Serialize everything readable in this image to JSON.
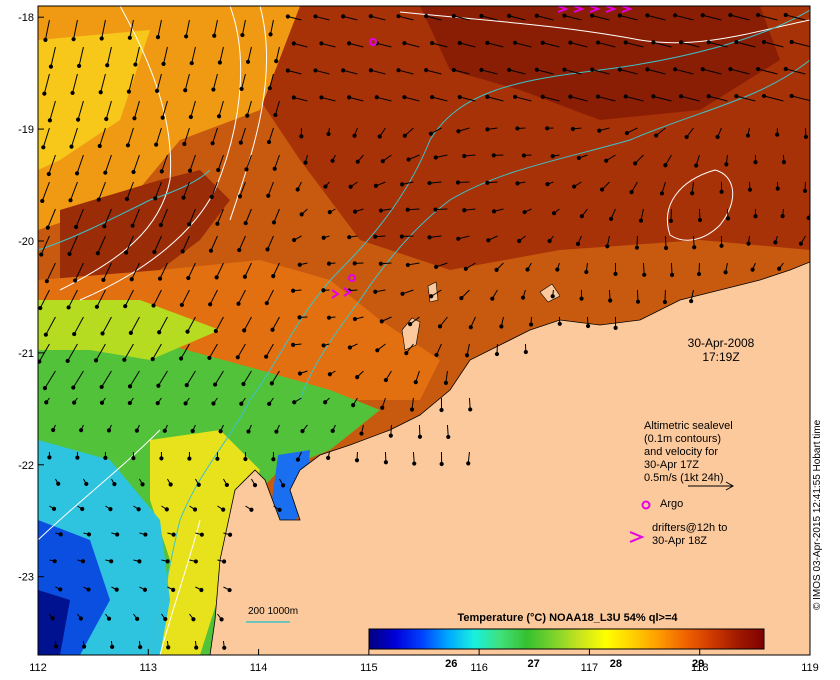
{
  "map": {
    "lon_ticks": [
      112,
      113,
      114,
      115,
      116,
      117,
      118,
      119
    ],
    "lat_ticks": [
      -18,
      -19,
      -20,
      -21,
      -22,
      -23
    ],
    "lon_tick_labels": [
      "112",
      "113",
      "114",
      "115",
      "116",
      "117",
      "118",
      "119"
    ],
    "lat_tick_labels": [
      "-18",
      "-19",
      "-20",
      "-21",
      "-22",
      "-23"
    ],
    "lon_range": [
      112,
      119
    ],
    "lat_range": [
      -23.7,
      -17.9
    ],
    "land_color": "#fcc99c",
    "contour_color_sealevel": "#ffffff",
    "contour_color_depth": "#3fc1c8",
    "vector_color": "#000000",
    "argo_color": "#e600e6",
    "drifter_color": "#e600e6"
  },
  "annotations": {
    "date": "30-Apr-2008",
    "time": "17:19Z",
    "legend_line1": "Altimetric sealevel",
    "legend_line2": "(0.1m contours)",
    "legend_line3": "and velocity for",
    "legend_line4": "30-Apr 17Z",
    "legend_line5": "0.5m/s (1kt 24h)",
    "argo_label": "Argo",
    "drifter_line1": "drifters@12h to",
    "drifter_line2": "30-Apr 18Z",
    "depth_contours": "200  1000m",
    "credit": "© IMOS 03-Apr-2015 12:41:55 Hobart time"
  },
  "colorbar": {
    "title": "Temperature (°C) NOAA18_L3U 54% ql>=4",
    "tick_labels": [
      "26",
      "27",
      "28",
      "29"
    ],
    "ticks": [
      26,
      27,
      28,
      29
    ],
    "range": [
      25.0,
      29.8
    ],
    "colors": [
      "#00007f",
      "#0000d9",
      "#0040ff",
      "#00a8ff",
      "#19f0e0",
      "#40e07a",
      "#36c030",
      "#7ad22c",
      "#c8e41e",
      "#ffff00",
      "#ffd000",
      "#ff9c00",
      "#f06400",
      "#d03a00",
      "#a01a00",
      "#800000"
    ]
  }
}
